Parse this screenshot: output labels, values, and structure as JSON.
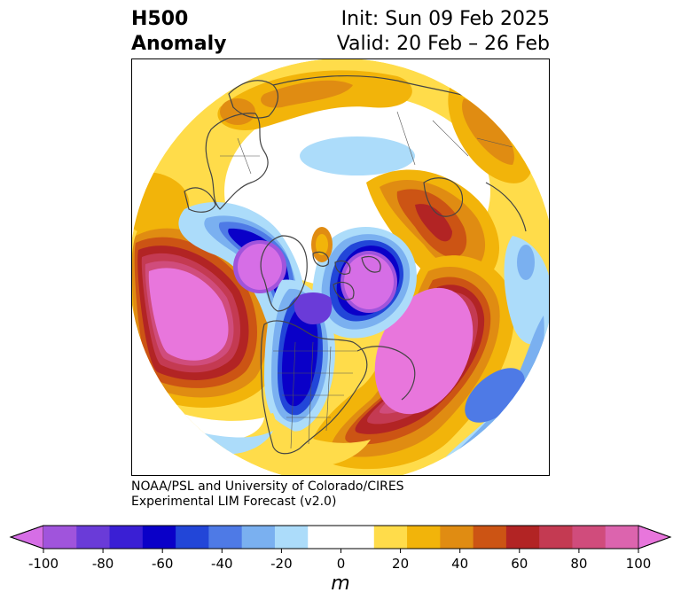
{
  "title": {
    "field": "H500",
    "kind": "Anomaly",
    "init": "Init: Sun 09 Feb 2025",
    "valid": "Valid: 20 Feb – 26 Feb"
  },
  "credit": {
    "line1": "NOAA/PSL and University of Colorado/CIRES",
    "line2": "Experimental LIM Forecast (v2.0)"
  },
  "colorbar": {
    "unit": "m",
    "ticks": [
      "-100",
      "-80",
      "-60",
      "-40",
      "-20",
      "0",
      "20",
      "40",
      "60",
      "80",
      "100"
    ],
    "colors": [
      "#d66ee6",
      "#a054dc",
      "#6a3bd8",
      "#3a1fd4",
      "#0a00c8",
      "#2246d8",
      "#4e7ae6",
      "#7ab0f0",
      "#acdcfa",
      "#ffffff",
      "#ffffff",
      "#ffdc4a",
      "#f2b40a",
      "#e08c12",
      "#cc5414",
      "#b22424",
      "#c43a52",
      "#d04c7c",
      "#dc64ae",
      "#e876dc"
    ]
  },
  "map": {
    "projection": "north polar stereographic",
    "features": [
      "coastlines",
      "country borders",
      "US state borders"
    ]
  }
}
